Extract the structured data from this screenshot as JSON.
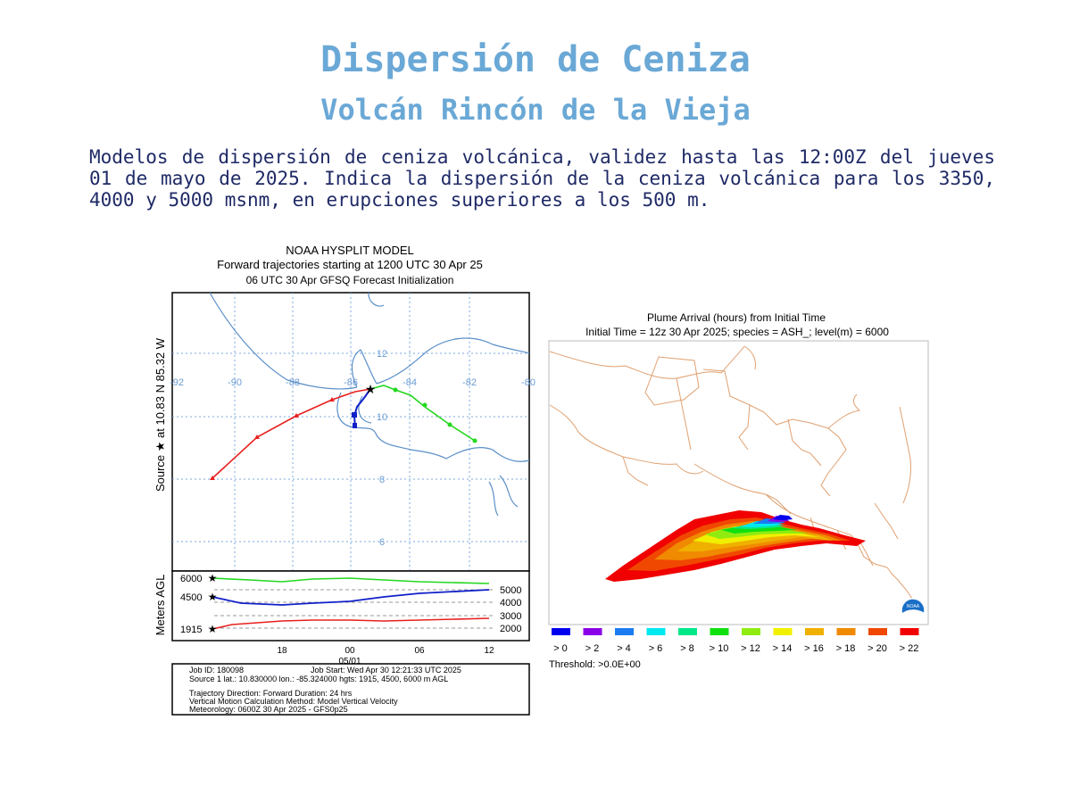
{
  "page": {
    "title": "Dispersión de Ceniza",
    "subtitle": "Volcán Rincón de la Vieja",
    "description": "Modelos de dispersión de ceniza volcánica, validez hasta las 12:00Z del jueves 01 de mayo de 2025. Indica la dispersión de la ceniza volcánica para los 3350, 4000 y 5000 msnm, en erupciones superiores a los 500 m."
  },
  "hysplit": {
    "title_line1": "NOAA HYSPLIT MODEL",
    "title_line2": "Forward trajectories starting at 1200 UTC 30 Apr 25",
    "title_line3": "06 UTC 30 Apr    GFSQ  Forecast Initialization",
    "ylabel_source": "Source ★ at   10.83 N   85.32 W",
    "ylabel_height": "Meters AGL",
    "lon_ticks": [
      "-92",
      "-90",
      "-88",
      "-86",
      "-84",
      "-82",
      "-80"
    ],
    "lat_ticks": [
      "12",
      "10",
      "8",
      "6"
    ],
    "left_height_labels": [
      "6000",
      "4500",
      "1915"
    ],
    "right_height_labels": [
      "5000",
      "4000",
      "3000",
      "2000"
    ],
    "time_ticks": [
      "18",
      "00",
      "06",
      "12"
    ],
    "date_label": "05/01",
    "info_line1_left": "Job ID: 180098",
    "info_line1_right": "Job Start: Wed Apr 30 12:21:33 UTC 2025",
    "info_line2": "Source 1 lat.: 10.830000  lon.: -85.324000  hgts: 1915, 4500, 6000 m AGL",
    "info_line3": "Trajectory Direction: Forward      Duration: 24 hrs",
    "info_line4": "Vertical Motion Calculation Method:      Model Vertical Velocity",
    "info_line5": "Meteorology: 0600Z 30 Apr 2025 - GFS0p25",
    "trajectory_colors": {
      "low": "#e8201f",
      "mid": "#1020c8",
      "high": "#22d81e"
    }
  },
  "plume": {
    "title_line1": "Plume Arrival (hours) from Initial Time",
    "title_line2": "Initial Time = 12z 30 Apr 2025;  species = ASH_;  level(m) =  6000",
    "logo_text": "NOAA",
    "legend": [
      {
        "label": "> 0",
        "color": "#0000ee"
      },
      {
        "label": "> 2",
        "color": "#8a00e8"
      },
      {
        "label": "> 4",
        "color": "#1a7cf0"
      },
      {
        "label": "> 6",
        "color": "#00e8f0"
      },
      {
        "label": "> 8",
        "color": "#00e88a"
      },
      {
        "label": "> 10",
        "color": "#10e010"
      },
      {
        "label": "> 12",
        "color": "#90ec10"
      },
      {
        "label": "> 14",
        "color": "#f0f000"
      },
      {
        "label": "> 16",
        "color": "#f0b000"
      },
      {
        "label": "> 18",
        "color": "#f08a00"
      },
      {
        "label": "> 20",
        "color": "#f04800"
      },
      {
        "label": "> 22",
        "color": "#f00000"
      }
    ],
    "threshold": "Threshold: >0.0E+00"
  }
}
